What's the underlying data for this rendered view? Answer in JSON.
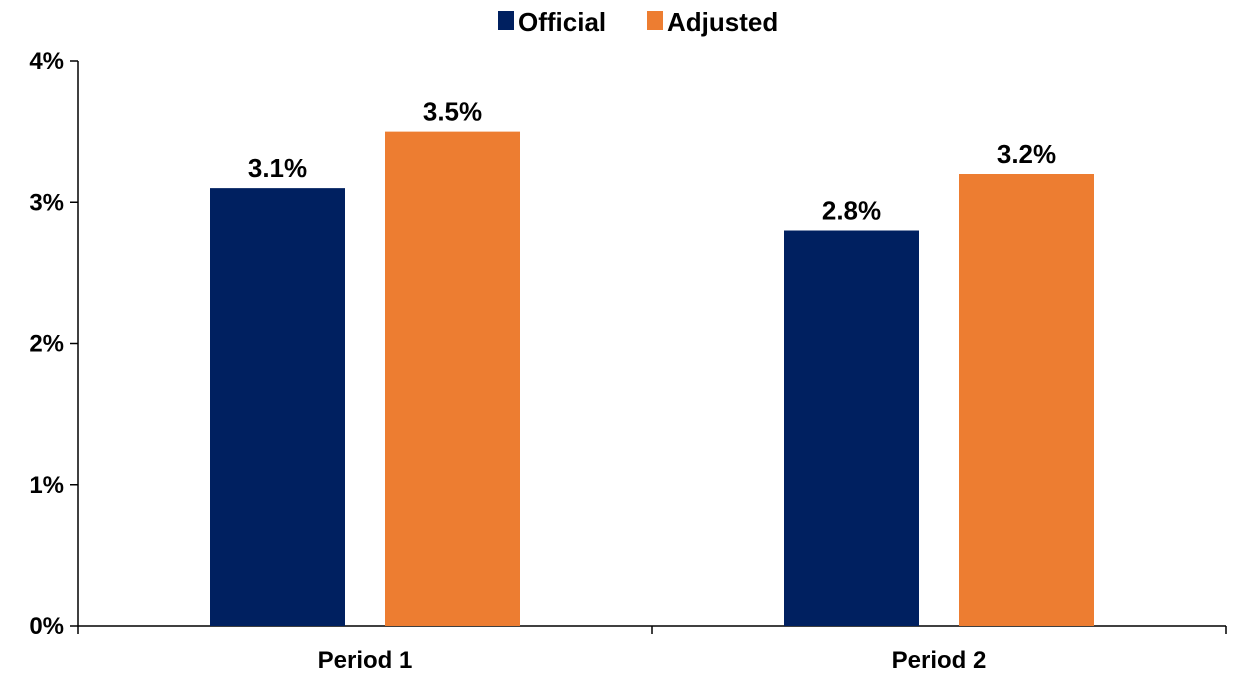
{
  "chart_data": {
    "type": "bar",
    "title": "",
    "xlabel": "",
    "ylabel": "",
    "categories": [
      "Period 1",
      "Period 2"
    ],
    "series": [
      {
        "name": "Official",
        "color": "#002060",
        "values": [
          3.1,
          2.8
        ],
        "labels": [
          "3.1%",
          "2.8%"
        ]
      },
      {
        "name": "Adjusted",
        "color": "#ED7D31",
        "values": [
          3.5,
          3.2
        ],
        "labels": [
          "3.5%",
          "3.2%"
        ]
      }
    ],
    "ylim": [
      0,
      4
    ],
    "yticks": [
      {
        "value": 0,
        "label": "0%"
      },
      {
        "value": 1,
        "label": "1%"
      },
      {
        "value": 2,
        "label": "2%"
      },
      {
        "value": 3,
        "label": "3%"
      },
      {
        "value": 4,
        "label": "4%"
      }
    ],
    "legend": {
      "position": "top-center"
    },
    "grid": false
  }
}
